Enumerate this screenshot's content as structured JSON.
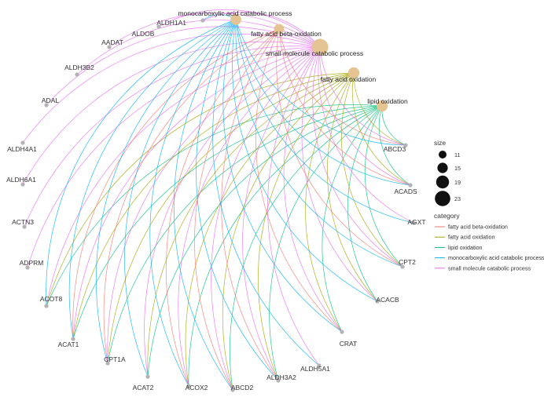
{
  "legend": {
    "size_title": "size",
    "size_entries": [
      {
        "label": "11",
        "value": 11
      },
      {
        "label": "15",
        "value": 15
      },
      {
        "label": "19",
        "value": 19
      },
      {
        "label": "23",
        "value": 23
      }
    ],
    "category_title": "category"
  },
  "categories": [
    {
      "id": "fabo",
      "label": "fatty acid beta-oxidation",
      "color": "#f8766d",
      "size": 12
    },
    {
      "id": "fao",
      "label": "fatty acid oxidation",
      "color": "#a3a500",
      "size": 14
    },
    {
      "id": "lo",
      "label": "lipid oxidation",
      "color": "#00bf7d",
      "size": 14
    },
    {
      "id": "mcacp",
      "label": "monocarboxylic acid catabolic process",
      "color": "#00b0f6",
      "size": 13
    },
    {
      "id": "smcp",
      "label": "small molecule catabolic process",
      "color": "#e76bf3",
      "size": 22
    }
  ],
  "hub_node_color": "#e5c494",
  "gene_node_color": "#b3b3b3",
  "genes": [
    {
      "label": "ALDH1A1",
      "links": [
        "mcacp",
        "smcp"
      ]
    },
    {
      "label": "ALDOB",
      "links": [
        "smcp"
      ]
    },
    {
      "label": "AADAT",
      "links": [
        "smcp"
      ]
    },
    {
      "label": "ALDH3B2",
      "links": [
        "smcp"
      ]
    },
    {
      "label": "ADAL",
      "links": [
        "smcp"
      ]
    },
    {
      "label": "ALDH4A1",
      "links": [
        "smcp"
      ]
    },
    {
      "label": "ALDH6A1",
      "links": [
        "smcp"
      ]
    },
    {
      "label": "ACTN3",
      "links": [
        "smcp"
      ]
    },
    {
      "label": "ADPRM",
      "links": [
        "smcp"
      ]
    },
    {
      "label": "ACOT8",
      "links": [
        "fao",
        "lo",
        "mcacp",
        "smcp"
      ]
    },
    {
      "label": "ACAT1",
      "links": [
        "fabo",
        "fao",
        "lo",
        "mcacp",
        "smcp"
      ]
    },
    {
      "label": "CPT1A",
      "links": [
        "fabo",
        "fao",
        "lo",
        "mcacp",
        "smcp"
      ]
    },
    {
      "label": "ACAT2",
      "links": [
        "fao",
        "lo",
        "mcacp",
        "smcp"
      ]
    },
    {
      "label": "ACOX2",
      "links": [
        "fabo",
        "fao",
        "lo",
        "mcacp",
        "smcp"
      ]
    },
    {
      "label": "ABCD2",
      "links": [
        "fabo",
        "fao",
        "lo",
        "mcacp",
        "smcp"
      ]
    },
    {
      "label": "ALDH3A2",
      "links": [
        "fabo",
        "fao",
        "lo",
        "mcacp",
        "smcp"
      ]
    },
    {
      "label": "ALDH5A1",
      "links": [
        "mcacp",
        "smcp"
      ]
    },
    {
      "label": "CRAT",
      "links": [
        "fabo",
        "fao",
        "lo",
        "mcacp",
        "smcp"
      ]
    },
    {
      "label": "ACACB",
      "links": [
        "fao",
        "lo",
        "mcacp",
        "smcp"
      ]
    },
    {
      "label": "CPT2",
      "links": [
        "fabo",
        "fao",
        "lo",
        "mcacp",
        "smcp"
      ]
    },
    {
      "label": "AGXT",
      "links": [
        "mcacp",
        "smcp"
      ]
    },
    {
      "label": "ACADS",
      "links": [
        "fabo",
        "fao",
        "lo",
        "mcacp",
        "smcp"
      ]
    },
    {
      "label": "ABCD3",
      "links": [
        "fabo",
        "fao",
        "lo",
        "mcacp",
        "smcp"
      ]
    }
  ]
}
